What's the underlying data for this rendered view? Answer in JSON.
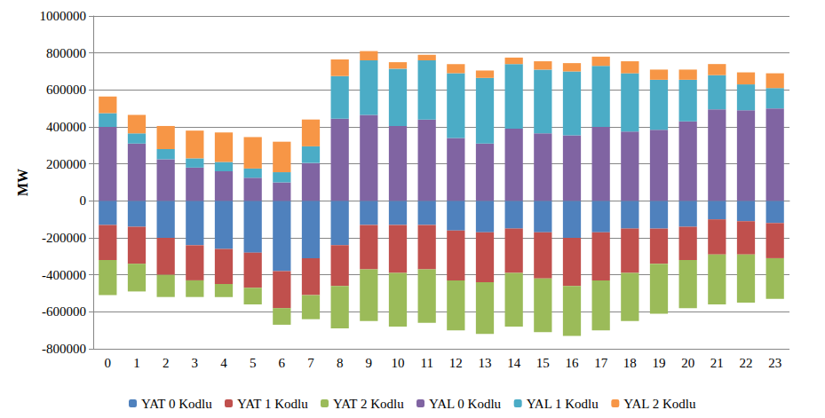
{
  "chart_data": {
    "type": "bar",
    "ylabel": "MW",
    "categories": [
      "0",
      "1",
      "2",
      "3",
      "4",
      "5",
      "6",
      "7",
      "8",
      "9",
      "10",
      "11",
      "12",
      "13",
      "14",
      "15",
      "16",
      "17",
      "18",
      "19",
      "20",
      "21",
      "22",
      "23"
    ],
    "stacked": true,
    "grid": true,
    "legend": "bottom",
    "ylim": [
      -800000,
      1000000
    ],
    "yticks": [
      -800000,
      -600000,
      -400000,
      -200000,
      0,
      200000,
      400000,
      600000,
      800000,
      1000000
    ],
    "series": [
      {
        "name": "YAT 0 Kodlu",
        "color": "#4F81BD",
        "values": [
          -130000,
          -140000,
          -200000,
          -240000,
          -260000,
          -280000,
          -380000,
          -310000,
          -240000,
          -130000,
          -130000,
          -130000,
          -160000,
          -170000,
          -150000,
          -170000,
          -200000,
          -170000,
          -150000,
          -150000,
          -140000,
          -100000,
          -110000,
          -120000
        ]
      },
      {
        "name": "YAT 1 Kodlu",
        "color": "#C0504D",
        "values": [
          -190000,
          -200000,
          -200000,
          -190000,
          -190000,
          -190000,
          -200000,
          -200000,
          -220000,
          -240000,
          -260000,
          -240000,
          -270000,
          -270000,
          -240000,
          -250000,
          -260000,
          -260000,
          -240000,
          -190000,
          -180000,
          -190000,
          -180000,
          -190000
        ]
      },
      {
        "name": "YAT 2 Kodlu",
        "color": "#9BBB59",
        "values": [
          -190000,
          -150000,
          -120000,
          -90000,
          -70000,
          -90000,
          -90000,
          -130000,
          -230000,
          -280000,
          -290000,
          -290000,
          -270000,
          -280000,
          -290000,
          -290000,
          -270000,
          -270000,
          -260000,
          -270000,
          -260000,
          -270000,
          -260000,
          -220000
        ]
      },
      {
        "name": "YAL 0 Kodlu",
        "color": "#8064A2",
        "values": [
          400000,
          310000,
          225000,
          180000,
          160000,
          125000,
          100000,
          205000,
          445000,
          465000,
          405000,
          440000,
          340000,
          310000,
          390000,
          365000,
          355000,
          400000,
          375000,
          385000,
          430000,
          495000,
          490000,
          500000
        ]
      },
      {
        "name": "YAL 1 Kodlu",
        "color": "#4BACC6",
        "values": [
          75000,
          55000,
          55000,
          50000,
          50000,
          50000,
          55000,
          90000,
          230000,
          295000,
          310000,
          320000,
          350000,
          355000,
          350000,
          345000,
          345000,
          330000,
          315000,
          270000,
          225000,
          185000,
          140000,
          110000
        ]
      },
      {
        "name": "YAL 2 Kodlu",
        "color": "#F79646",
        "values": [
          90000,
          100000,
          125000,
          150000,
          160000,
          170000,
          165000,
          145000,
          90000,
          50000,
          35000,
          30000,
          50000,
          40000,
          35000,
          45000,
          45000,
          50000,
          65000,
          55000,
          55000,
          60000,
          65000,
          80000
        ]
      }
    ]
  }
}
